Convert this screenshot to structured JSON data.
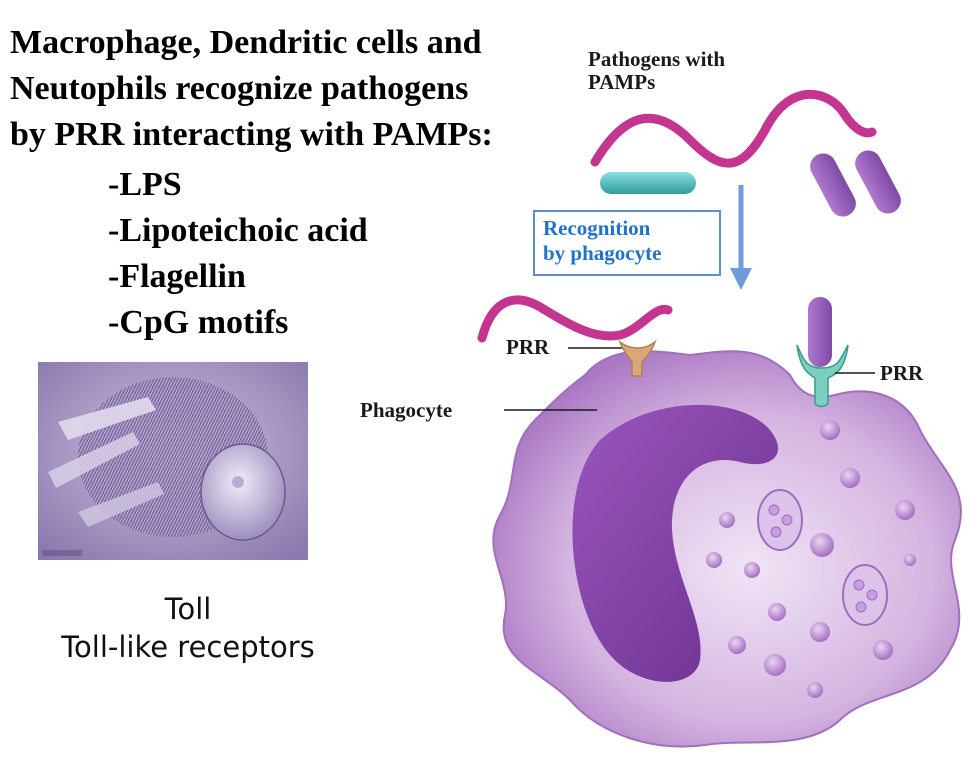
{
  "heading": {
    "lines": [
      "Macrophage, Dendritic cells and",
      "Neutophils recognize pathogens",
      "by PRR interacting with PAMPs:"
    ]
  },
  "pamps": [
    "-LPS",
    "-Lipoteichoic acid",
    "-Flagellin",
    "-CpG motifs"
  ],
  "caption": {
    "line1": "Toll",
    "line2": "Toll-like receptors"
  },
  "diagram": {
    "pathogens_label": "Pathogens with PAMPs",
    "recognition_line1": "Recognition",
    "recognition_line2": "by phagocyte",
    "prr_left_label": "PRR",
    "prr_right_label": "PRR",
    "phagocyte_label": "Phagocyte"
  },
  "colors": {
    "pathogen_magenta": "#c4358f",
    "pathogen_teal": "#3fb6b6",
    "pathogen_purple": "#9b59b6",
    "cell_body": "#c7a3d6",
    "nucleus": "#7d3ea0",
    "prr_tan": "#d9a878",
    "prr_teal": "#7ccfc0",
    "arrow_blue": "#6f9bd6",
    "recognition_text": "#1f73c8"
  }
}
